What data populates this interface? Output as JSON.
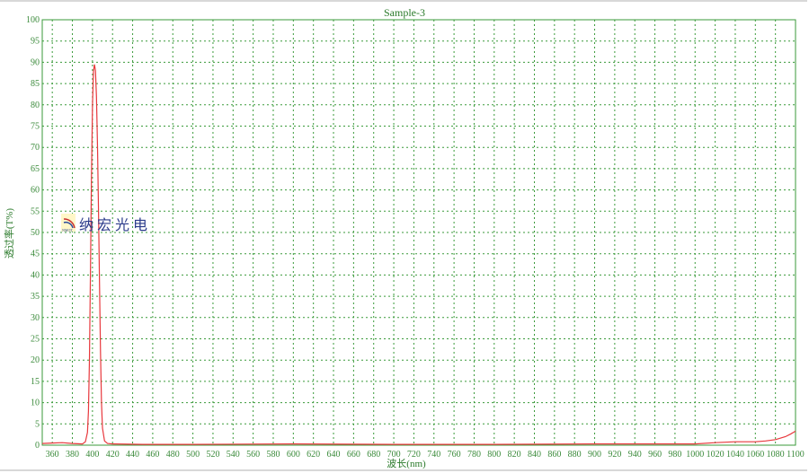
{
  "chart_data": {
    "type": "line",
    "title": "Sample-3",
    "xlabel": "波长(nm)",
    "ylabel": "透过率(T%)",
    "xlim": [
      350,
      1100
    ],
    "ylim": [
      0,
      100
    ],
    "xticks": [
      360,
      380,
      400,
      420,
      440,
      460,
      480,
      500,
      520,
      540,
      560,
      580,
      600,
      620,
      640,
      660,
      680,
      700,
      720,
      740,
      760,
      780,
      800,
      820,
      840,
      860,
      880,
      900,
      920,
      940,
      960,
      980,
      1000,
      1020,
      1040,
      1060,
      1080,
      1100
    ],
    "yticks": [
      0,
      5,
      10,
      15,
      20,
      25,
      30,
      35,
      40,
      45,
      50,
      55,
      60,
      65,
      70,
      75,
      80,
      85,
      90,
      95,
      100
    ],
    "grid": true,
    "colors": {
      "line": "#e8383d",
      "axis": "#3a9a3a",
      "grid": "#3a9a3a"
    },
    "series": [
      {
        "x": [
          350,
          360,
          370,
          380,
          390,
          393,
          395,
          396,
          397,
          398,
          399,
          400,
          401,
          402,
          403,
          404,
          405,
          406,
          407,
          408,
          409,
          410,
          412,
          415,
          420,
          450,
          500,
          600,
          700,
          800,
          900,
          1000,
          1020,
          1040,
          1060,
          1070,
          1080,
          1090,
          1095,
          1100
        ],
        "y": [
          0.4,
          0.5,
          0.6,
          0.4,
          0.3,
          0.8,
          3,
          8,
          20,
          40,
          62,
          80,
          88,
          89.5,
          88,
          82,
          70,
          55,
          38,
          22,
          10,
          4,
          1,
          0.4,
          0.3,
          0.2,
          0.2,
          0.3,
          0.2,
          0.2,
          0.3,
          0.3,
          0.6,
          0.8,
          0.8,
          1.0,
          1.3,
          2.0,
          2.6,
          3.3
        ]
      }
    ]
  },
  "logo": {
    "text": "纳宏光电",
    "mark": "NMOT"
  }
}
